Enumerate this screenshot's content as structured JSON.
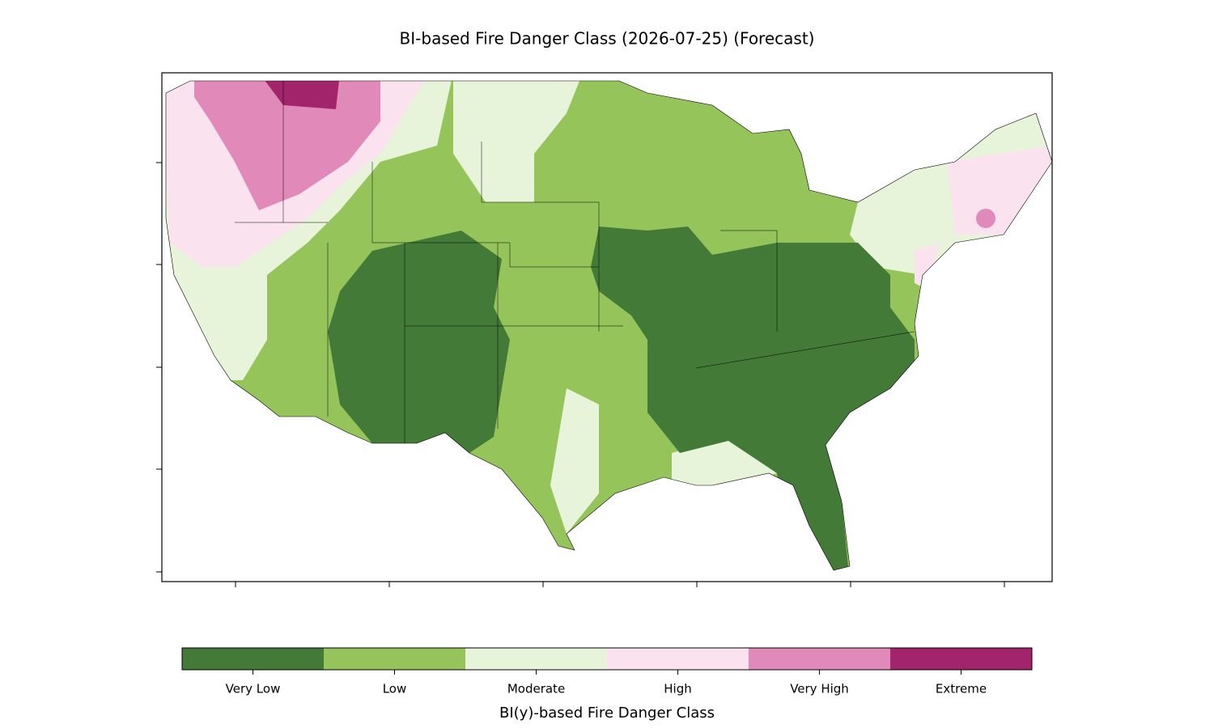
{
  "title": "BI-based Fire Danger Class (2026-07-25) (Forecast)",
  "colorbar": {
    "label": "BI(y)-based Fire Danger Class",
    "classes": [
      {
        "name": "Very Low",
        "color": "#437a38"
      },
      {
        "name": "Low",
        "color": "#95c45b"
      },
      {
        "name": "Moderate",
        "color": "#e8f4d9"
      },
      {
        "name": "High",
        "color": "#fbe2ef"
      },
      {
        "name": "Very High",
        "color": "#e18ab9"
      },
      {
        "name": "Extreme",
        "color": "#a2256b"
      }
    ]
  }
}
